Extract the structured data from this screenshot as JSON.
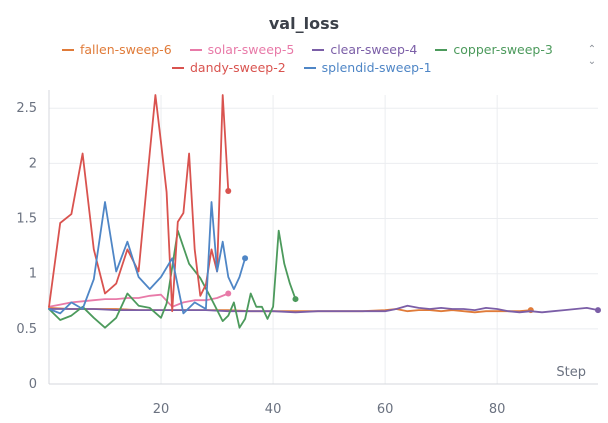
{
  "chart_data": {
    "type": "line",
    "title": "val_loss",
    "xlabel": "Step",
    "ylabel": "",
    "xlim": [
      0,
      98
    ],
    "ylim": [
      0,
      2.62
    ],
    "x_ticks": [
      20,
      40,
      60,
      80
    ],
    "y_ticks": [
      0,
      0.5,
      1,
      1.5,
      2,
      2.5
    ],
    "x_tick_labels": [
      "20",
      "40",
      "60",
      "80"
    ],
    "y_tick_labels": [
      "0",
      "0.5",
      "1",
      "1.5",
      "2",
      "2.5"
    ],
    "grid": true,
    "legend_position": "top",
    "series": [
      {
        "name": "fallen-sweep-6",
        "color": "#e07b39",
        "x": [
          0,
          4,
          8,
          12,
          16,
          20,
          24,
          28,
          32,
          36,
          40,
          44,
          48,
          52,
          56,
          60,
          62,
          64,
          66,
          68,
          70,
          72,
          74,
          76,
          78,
          80,
          82,
          84,
          86
        ],
        "y": [
          0.69,
          0.68,
          0.68,
          0.68,
          0.67,
          0.67,
          0.67,
          0.67,
          0.67,
          0.66,
          0.66,
          0.66,
          0.66,
          0.66,
          0.66,
          0.67,
          0.68,
          0.66,
          0.67,
          0.67,
          0.66,
          0.67,
          0.66,
          0.65,
          0.66,
          0.66,
          0.66,
          0.66,
          0.67
        ]
      },
      {
        "name": "solar-sweep-5",
        "color": "#e87aa8",
        "x": [
          0,
          2,
          4,
          6,
          8,
          10,
          12,
          14,
          16,
          18,
          20,
          22,
          24,
          26,
          28,
          30,
          32
        ],
        "y": [
          0.7,
          0.72,
          0.74,
          0.75,
          0.76,
          0.77,
          0.77,
          0.78,
          0.78,
          0.8,
          0.81,
          0.7,
          0.74,
          0.76,
          0.76,
          0.78,
          0.82
        ]
      },
      {
        "name": "clear-sweep-4",
        "color": "#7b5ea7",
        "x": [
          0,
          4,
          8,
          12,
          16,
          20,
          24,
          28,
          32,
          36,
          40,
          44,
          48,
          52,
          56,
          60,
          62,
          64,
          66,
          68,
          70,
          72,
          74,
          76,
          78,
          80,
          82,
          84,
          86,
          88,
          90,
          92,
          94,
          96,
          98
        ],
        "y": [
          0.68,
          0.68,
          0.68,
          0.67,
          0.67,
          0.67,
          0.67,
          0.67,
          0.66,
          0.66,
          0.66,
          0.65,
          0.66,
          0.66,
          0.66,
          0.66,
          0.68,
          0.71,
          0.69,
          0.68,
          0.69,
          0.68,
          0.68,
          0.67,
          0.69,
          0.68,
          0.66,
          0.65,
          0.66,
          0.65,
          0.66,
          0.67,
          0.68,
          0.69,
          0.67
        ]
      },
      {
        "name": "copper-sweep-3",
        "color": "#4c9a5c",
        "x": [
          0,
          2,
          4,
          6,
          8,
          10,
          12,
          14,
          16,
          18,
          20,
          21,
          23,
          25,
          27,
          29,
          31,
          32,
          33,
          34,
          35,
          36,
          37,
          38,
          39,
          40,
          41,
          42,
          43,
          44
        ],
        "y": [
          0.68,
          0.58,
          0.62,
          0.7,
          0.6,
          0.51,
          0.6,
          0.82,
          0.71,
          0.69,
          0.6,
          0.73,
          1.39,
          1.09,
          0.96,
          0.77,
          0.57,
          0.62,
          0.74,
          0.51,
          0.59,
          0.82,
          0.7,
          0.7,
          0.59,
          0.7,
          1.39,
          1.09,
          0.91,
          0.77
        ]
      },
      {
        "name": "dandy-sweep-2",
        "color": "#d9534f",
        "x": [
          0,
          2,
          4,
          6,
          8,
          10,
          12,
          14,
          16,
          18,
          19,
          20,
          21,
          22,
          23,
          24,
          25,
          26,
          27,
          28,
          29,
          30,
          31,
          32
        ],
        "y": [
          0.7,
          1.46,
          1.54,
          2.09,
          1.22,
          0.82,
          0.91,
          1.22,
          1.02,
          2.1,
          2.62,
          2.19,
          1.74,
          0.66,
          1.47,
          1.55,
          2.09,
          1.22,
          0.8,
          0.9,
          1.22,
          1.02,
          2.62,
          1.75
        ]
      },
      {
        "name": "splendid-sweep-1",
        "color": "#4f86c6",
        "x": [
          0,
          2,
          4,
          6,
          8,
          10,
          12,
          14,
          16,
          18,
          20,
          22,
          24,
          26,
          28,
          29,
          30,
          31,
          32,
          33,
          34,
          35
        ],
        "y": [
          0.68,
          0.64,
          0.74,
          0.68,
          0.95,
          1.65,
          1.02,
          1.29,
          0.97,
          0.86,
          0.97,
          1.14,
          0.64,
          0.74,
          0.68,
          1.65,
          1.02,
          1.29,
          0.97,
          0.86,
          0.97,
          1.14
        ]
      }
    ]
  },
  "legend_scroll": {
    "up_glyph": "⌃",
    "down_glyph": "⌄"
  }
}
